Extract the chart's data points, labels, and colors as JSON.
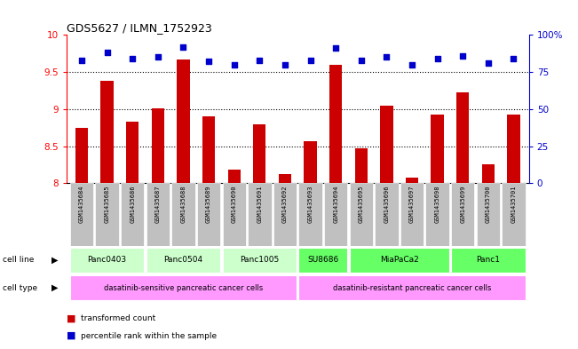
{
  "title": "GDS5627 / ILMN_1752923",
  "samples": [
    "GSM1435684",
    "GSM1435685",
    "GSM1435686",
    "GSM1435687",
    "GSM1435688",
    "GSM1435689",
    "GSM1435690",
    "GSM1435691",
    "GSM1435692",
    "GSM1435693",
    "GSM1435694",
    "GSM1435695",
    "GSM1435696",
    "GSM1435697",
    "GSM1435698",
    "GSM1435699",
    "GSM1435700",
    "GSM1435701"
  ],
  "transformed_count": [
    8.75,
    9.38,
    8.83,
    9.01,
    9.67,
    8.9,
    8.18,
    8.8,
    8.12,
    8.57,
    9.6,
    8.47,
    9.05,
    8.07,
    8.92,
    9.23,
    8.25,
    8.93
  ],
  "percentile_rank": [
    83,
    88,
    84,
    85,
    92,
    82,
    80,
    83,
    80,
    83,
    91,
    83,
    85,
    80,
    84,
    86,
    81,
    84
  ],
  "cell_lines": [
    {
      "name": "Panc0403",
      "start": 0,
      "end": 2,
      "color": "#ccffcc"
    },
    {
      "name": "Panc0504",
      "start": 3,
      "end": 5,
      "color": "#ccffcc"
    },
    {
      "name": "Panc1005",
      "start": 6,
      "end": 8,
      "color": "#ccffcc"
    },
    {
      "name": "SU8686",
      "start": 9,
      "end": 10,
      "color": "#66ff66"
    },
    {
      "name": "MiaPaCa2",
      "start": 11,
      "end": 14,
      "color": "#66ff66"
    },
    {
      "name": "Panc1",
      "start": 15,
      "end": 17,
      "color": "#66ff66"
    }
  ],
  "cell_types": [
    {
      "name": "dasatinib-sensitive pancreatic cancer cells",
      "start": 0,
      "end": 8,
      "color": "#ff99ff"
    },
    {
      "name": "dasatinib-resistant pancreatic cancer cells",
      "start": 9,
      "end": 17,
      "color": "#ff99ff"
    }
  ],
  "ylim_left": [
    8.0,
    10.0
  ],
  "ylim_right": [
    0,
    100
  ],
  "yticks_left": [
    8.0,
    8.5,
    9.0,
    9.5,
    10.0
  ],
  "yticks_right": [
    0,
    25,
    50,
    75,
    100
  ],
  "bar_color": "#cc0000",
  "dot_color": "#0000cc",
  "bar_width": 0.5,
  "background_color": "#ffffff",
  "label_color": "#c0c0c0"
}
